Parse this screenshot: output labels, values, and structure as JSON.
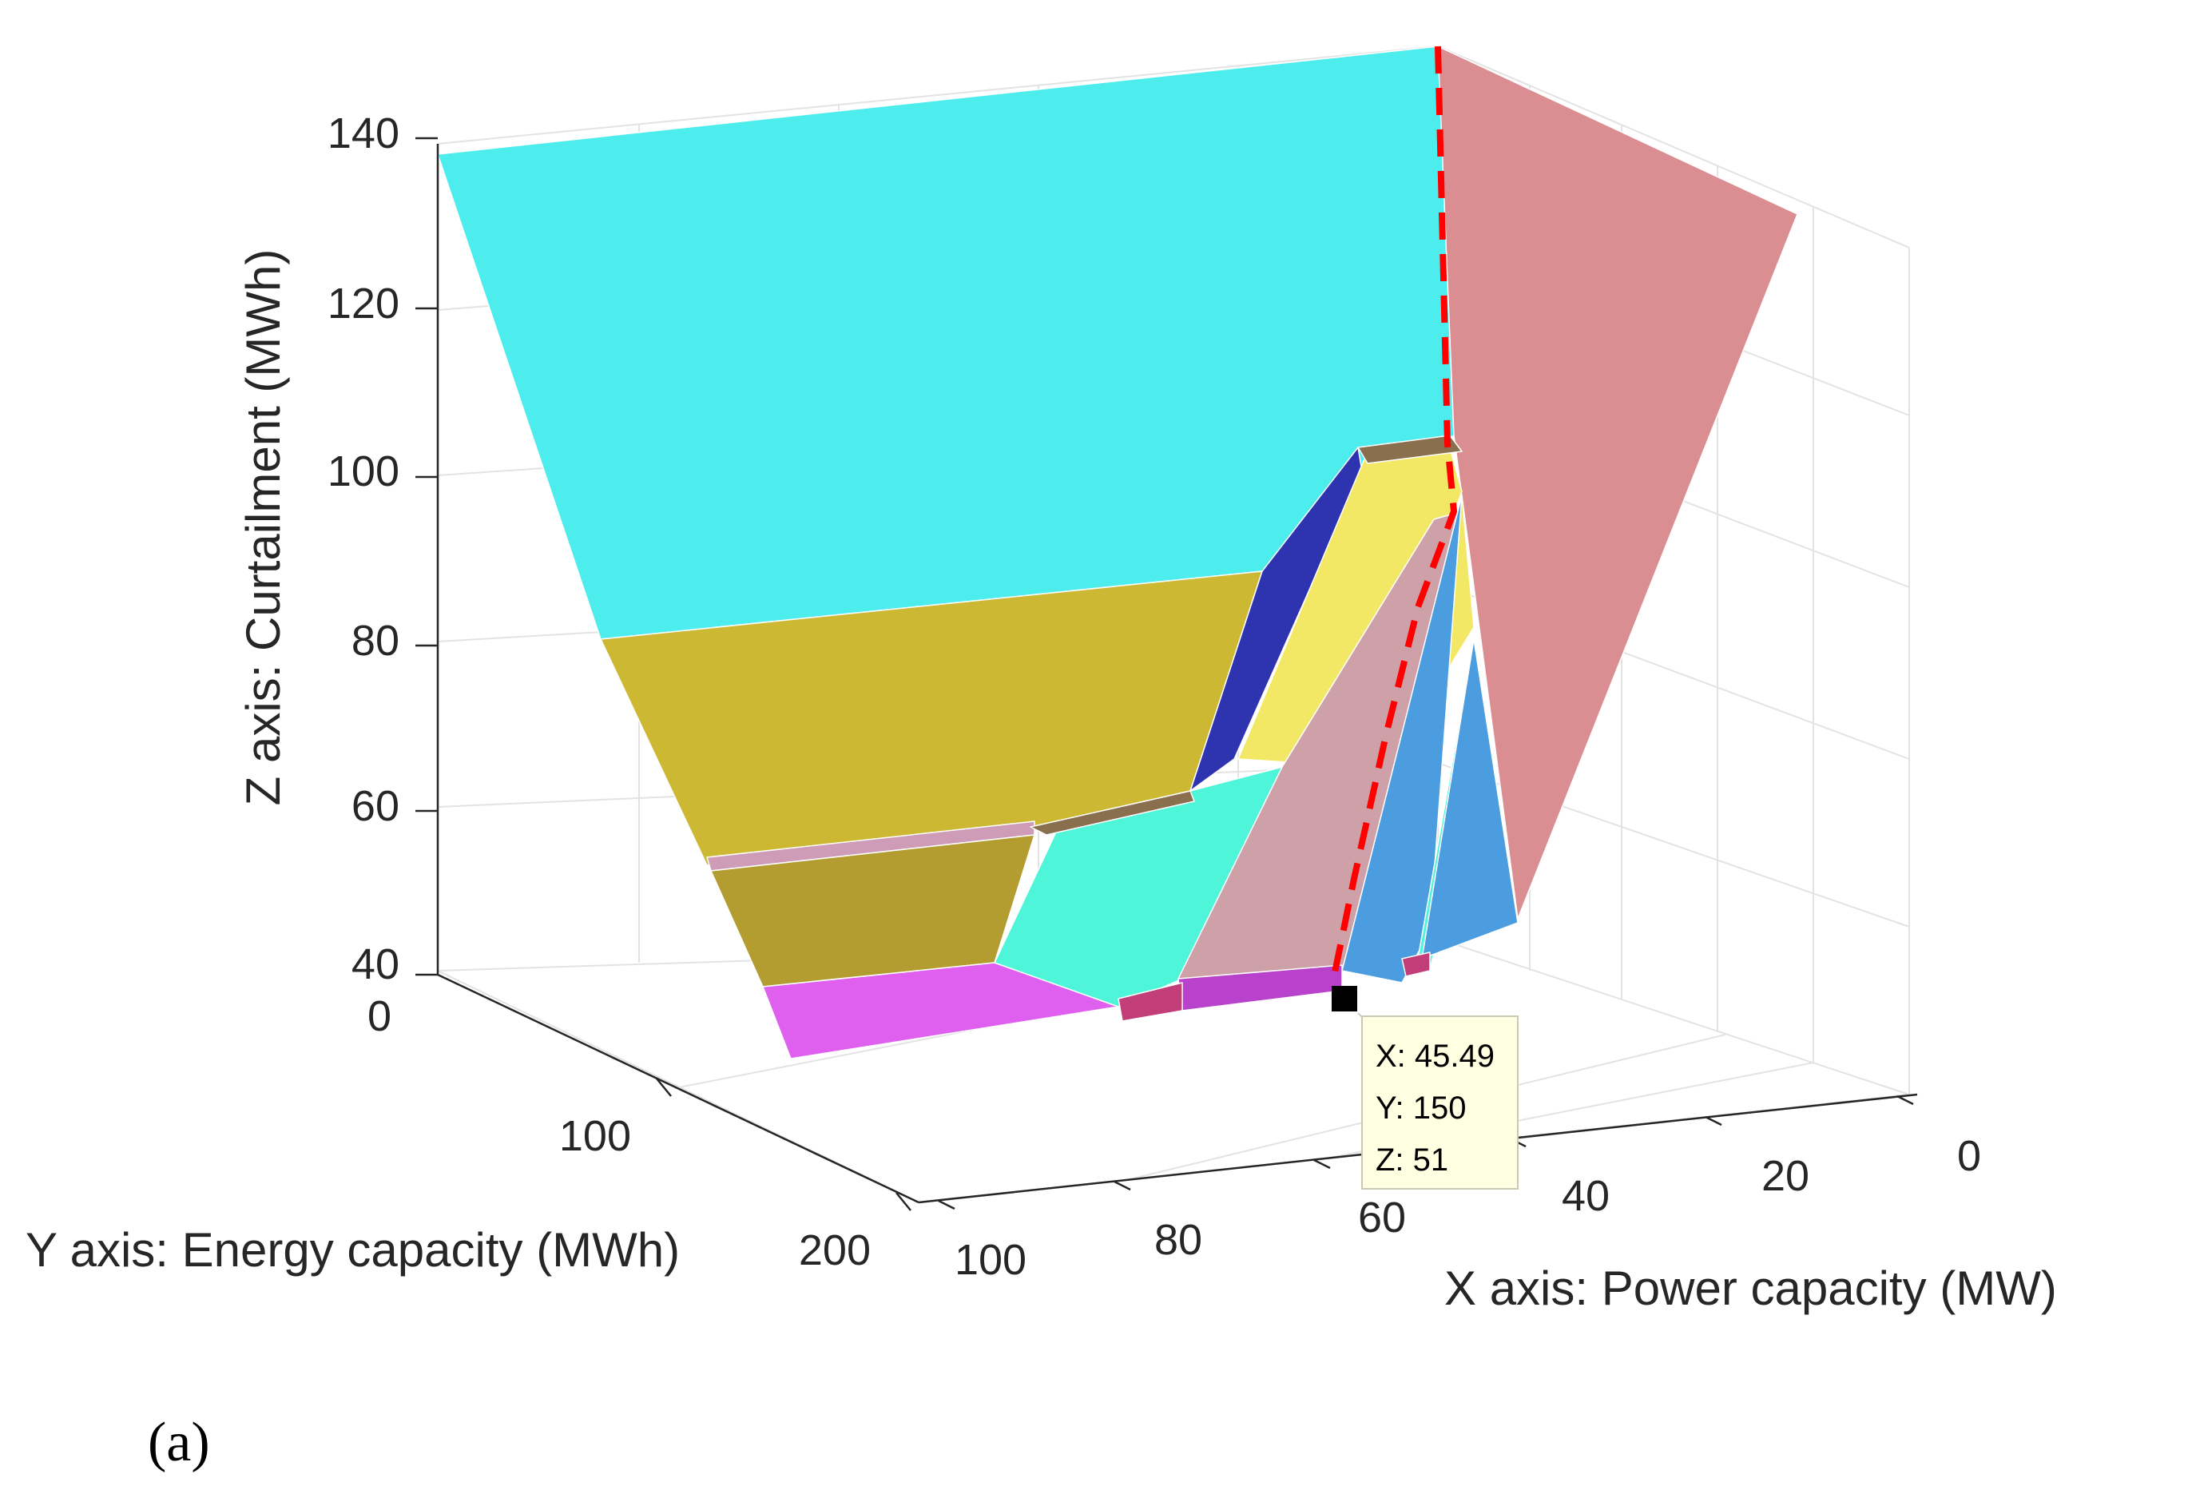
{
  "chart_data": {
    "type": "surface",
    "panel_label": "(a)",
    "x_axis": {
      "label": "X axis: Power capacity (MW)",
      "ticks": [
        "100",
        "80",
        "60",
        "40",
        "20",
        "0"
      ],
      "range": [
        0,
        100
      ]
    },
    "y_axis": {
      "label": "Y axis: Energy capacity (MWh)",
      "ticks": [
        "0",
        "100",
        "200"
      ],
      "range": [
        0,
        200
      ]
    },
    "z_axis": {
      "label": "Z axis: Curtailment (MWh)",
      "ticks": [
        "40",
        "60",
        "80",
        "100",
        "120",
        "140"
      ],
      "range": [
        40,
        140
      ]
    },
    "grid": true,
    "boundary_curve": {
      "style": "dashed",
      "color": "#ff0000"
    },
    "datatip": {
      "marker_color": "#000000",
      "lines": [
        "X: 45.49",
        "Y: 150",
        "Z: 51"
      ]
    },
    "region_colors": {
      "cyan": "#4deded",
      "salmon": "#db8e92",
      "olive": "#cdb833",
      "olive_dark": "#b49d30",
      "magenta": "#df5fef",
      "purple": "#b842cc",
      "crimson": "#c23e79",
      "aqua": "#4ef5d8",
      "navy": "#2e33b0",
      "yellow": "#f2e866",
      "mauve": "#cea0a8",
      "blue": "#4c9ddf",
      "brown": "#8a6f4f",
      "pink": "#cf9cb8"
    }
  }
}
